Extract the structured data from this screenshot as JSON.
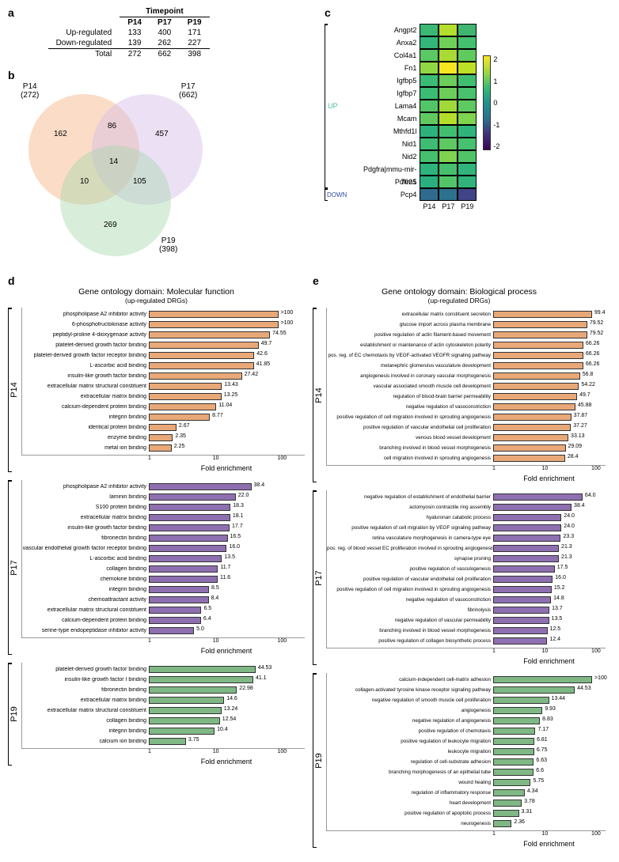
{
  "colors": {
    "p14": "#e8a878",
    "p17": "#b79cc9",
    "p19": "#9bcaa0",
    "venn_p14": "#f4b183",
    "venn_p17": "#d5bde7",
    "venn_p19": "#a8d8ad",
    "up_label": "#4bbfa4",
    "down_label": "#2e4a9e"
  },
  "panel_a": {
    "label": "a",
    "header": "Timepoint",
    "cols": [
      "P14",
      "P17",
      "P19"
    ],
    "rows": [
      {
        "label": "Up-regulated",
        "vals": [
          "133",
          "400",
          "171"
        ]
      },
      {
        "label": "Down-regulated",
        "vals": [
          "139",
          "262",
          "227"
        ]
      },
      {
        "label": "Total",
        "vals": [
          "272",
          "662",
          "398"
        ]
      }
    ]
  },
  "panel_b": {
    "label": "b",
    "sets": [
      {
        "name": "P14",
        "count": "(272)"
      },
      {
        "name": "P17",
        "count": "(662)"
      },
      {
        "name": "P19",
        "count": "(398)"
      }
    ],
    "regions": {
      "only14": "162",
      "only17": "457",
      "only19": "269",
      "a14_17": "86",
      "a14_19": "10",
      "a17_19": "105",
      "all": "14"
    }
  },
  "panel_c": {
    "label": "c",
    "up_label": "UP",
    "down_label": "DOWN",
    "cols": [
      "P14",
      "P17",
      "P19"
    ],
    "cbar_ticks": [
      "2",
      "1",
      "0",
      "-1",
      "-2"
    ],
    "genes": [
      {
        "n": "Angpt2",
        "c": [
          "#3cb875",
          "#b5dd2e",
          "#3fb56f"
        ]
      },
      {
        "n": "Anxa2",
        "c": [
          "#32b679",
          "#70cf57",
          "#45c06e"
        ]
      },
      {
        "n": "Col4a1",
        "c": [
          "#5bc863",
          "#a8db33",
          "#60ca5f"
        ]
      },
      {
        "n": "Fn1",
        "c": [
          "#90d743",
          "#f8e621",
          "#bddf26"
        ]
      },
      {
        "n": "Igfbp5",
        "c": [
          "#3bbc74",
          "#6ccd5a",
          "#3fbe72"
        ]
      },
      {
        "n": "Igfbp7",
        "c": [
          "#3bbc74",
          "#6ccd5a",
          "#4ac16d"
        ]
      },
      {
        "n": "Lama4",
        "c": [
          "#52c569",
          "#a0da39",
          "#5ec961"
        ]
      },
      {
        "n": "Mcam",
        "c": [
          "#60ca60",
          "#b5de2b",
          "#7fd34e"
        ]
      },
      {
        "n": "Mthfd1l",
        "c": [
          "#2db27d",
          "#42be71",
          "#2fb47c"
        ]
      },
      {
        "n": "Nid1",
        "c": [
          "#3fbc73",
          "#5ec961",
          "#47c06f"
        ]
      },
      {
        "n": "Nid2",
        "c": [
          "#46c06f",
          "#7fd34e",
          "#50c467"
        ]
      },
      {
        "n": "Pdgfra|mmu-mir-7025",
        "c": [
          "#2eb37c",
          "#46c06f",
          "#30b47b"
        ]
      },
      {
        "n": "Pdlim1",
        "c": [
          "#2ab07f",
          "#52c569",
          "#30b47b"
        ]
      },
      {
        "n": "Pcp4",
        "c": [
          "#2f6b8e",
          "#2c728e",
          "#414487"
        ]
      }
    ]
  },
  "panel_d": {
    "label": "d",
    "title": "Gene ontology domain: Molecular function",
    "subtitle": "(up-regulated DRGs)",
    "axis": "Fold enrichment",
    "xticks": [
      "1",
      "10",
      "100"
    ],
    "log_min": 1,
    "log_max": 120,
    "blocks": [
      {
        "name": "P14",
        "color": "#e8a878",
        "items": [
          {
            "l": "phospholipase A2 inhibitor activity",
            "v": ">100",
            "n": 100
          },
          {
            "l": "6-phosphofructokinase activity",
            "v": ">100",
            "n": 100
          },
          {
            "l": "peptidyl-proline 4-dioxygenase activity",
            "v": "74.55",
            "n": 74.55
          },
          {
            "l": "platelet-derived growth factor binding",
            "v": "49.7",
            "n": 49.7
          },
          {
            "l": "platelet-derived growth factor receptor binding",
            "v": "42.6",
            "n": 42.6
          },
          {
            "l": "L-ascorbic acid binding",
            "v": "41.85",
            "n": 41.85
          },
          {
            "l": "insulin-like growth factor binding",
            "v": "27.42",
            "n": 27.42
          },
          {
            "l": "extracellular matrix structural constituent",
            "v": "13.43",
            "n": 13.43
          },
          {
            "l": "extracellular matrix binding",
            "v": "13.25",
            "n": 13.25
          },
          {
            "l": "calcium-dependent protein binding",
            "v": "11.04",
            "n": 11.04
          },
          {
            "l": "integrin binding",
            "v": "8.77",
            "n": 8.77
          },
          {
            "l": "identical protein binding",
            "v": "2.67",
            "n": 2.67
          },
          {
            "l": "enzyme binding",
            "v": "2.35",
            "n": 2.35
          },
          {
            "l": "metal ion binding",
            "v": "2.25",
            "n": 2.25
          }
        ]
      },
      {
        "name": "P17",
        "color": "#8e6fb0",
        "items": [
          {
            "l": "phospholipase A2 inhibitor activity",
            "v": "38.4",
            "n": 38.4
          },
          {
            "l": "laminin binding",
            "v": "22.0",
            "n": 22.0
          },
          {
            "l": "S100 protein binding",
            "v": "18.3",
            "n": 18.3
          },
          {
            "l": "extracellular matrix binding",
            "v": "18.1",
            "n": 18.1
          },
          {
            "l": "insulin-like growth factor binding",
            "v": "17.7",
            "n": 17.7
          },
          {
            "l": "fibronectin binding",
            "v": "16.5",
            "n": 16.5
          },
          {
            "l": "vascular endothelial growth factor receptor binding",
            "v": "16.0",
            "n": 16.0
          },
          {
            "l": "L-ascorbic acid binding",
            "v": "13.5",
            "n": 13.5
          },
          {
            "l": "collagen binding",
            "v": "11.7",
            "n": 11.7
          },
          {
            "l": "chemokine binding",
            "v": "11.6",
            "n": 11.6
          },
          {
            "l": "integrin binding",
            "v": "8.5",
            "n": 8.5
          },
          {
            "l": "chemoattractant activity",
            "v": "8.4",
            "n": 8.4
          },
          {
            "l": "extracellular matrix structural constituent",
            "v": "6.5",
            "n": 6.5
          },
          {
            "l": "calcium-dependent protein binding",
            "v": "6.4",
            "n": 6.4
          },
          {
            "l": "serine-type endopeptidase inhibitor activity",
            "v": "5.0",
            "n": 5.0
          }
        ]
      },
      {
        "name": "P19",
        "color": "#7fb884",
        "items": [
          {
            "l": "platelet-derived growth factor binding",
            "v": "44.53",
            "n": 44.53
          },
          {
            "l": "insulin-like growth factor I binding",
            "v": "41.1",
            "n": 41.1
          },
          {
            "l": "fibronectin binding",
            "v": "22.98",
            "n": 22.98
          },
          {
            "l": "extracellular matrix binding",
            "v": "14.6",
            "n": 14.6
          },
          {
            "l": "extracellular matrix structural constituent",
            "v": "13.24",
            "n": 13.24
          },
          {
            "l": "collagen binding",
            "v": "12.54",
            "n": 12.54
          },
          {
            "l": "integrin binding",
            "v": "10.4",
            "n": 10.4
          },
          {
            "l": "calcium ion binding",
            "v": "3.75",
            "n": 3.75
          }
        ]
      }
    ]
  },
  "panel_e": {
    "label": "e",
    "title": "Gene ontology domain: Biological process",
    "subtitle": "(up-regulated DRGs)",
    "axis": "Fold enrichment",
    "xticks": [
      "1",
      "10",
      "100"
    ],
    "log_min": 1,
    "log_max": 120,
    "blocks": [
      {
        "name": "P14",
        "color": "#e8a878",
        "items": [
          {
            "l": "extracellular matrix constituent secretion",
            "v": "99.4",
            "n": 99.4
          },
          {
            "l": "glucose import across plasma membrane",
            "v": "79.52",
            "n": 79.52
          },
          {
            "l": "positive regulation of actin filament-based movement",
            "v": "79.52",
            "n": 79.52
          },
          {
            "l": "establishment or maintenance of actin cytoskeleton polarity",
            "v": "66.26",
            "n": 66.26
          },
          {
            "l": "pos. reg. of EC chemotaxis by VEGF-activated VEGFR signaling pathway",
            "v": "66.26",
            "n": 66.26
          },
          {
            "l": "metanephric glomerulus vasculature development",
            "v": "66.26",
            "n": 66.26
          },
          {
            "l": "angiogenesis involved in coronary vascular morphogenesis",
            "v": "56.8",
            "n": 56.8
          },
          {
            "l": "vascular associated smooth muscle cell development",
            "v": "54.22",
            "n": 54.22
          },
          {
            "l": "regulation of blood-brain barrier permeability",
            "v": "49.7",
            "n": 49.7
          },
          {
            "l": "negative regulation of vasoconstriction",
            "v": "45.88",
            "n": 45.88
          },
          {
            "l": "positive regulation of cell migration involved in sprouting angiogenesis",
            "v": "37.87",
            "n": 37.87
          },
          {
            "l": "positive regulation of vascular endothelial cell proliferation",
            "v": "37.27",
            "n": 37.27
          },
          {
            "l": "venous blood vessel development",
            "v": "33.13",
            "n": 33.13
          },
          {
            "l": "branching involved in blood vessel morphogenesis",
            "v": "29.09",
            "n": 29.09
          },
          {
            "l": "cell migration involved in sprouting angiogenesis",
            "v": "28.4",
            "n": 28.4
          }
        ]
      },
      {
        "name": "P17",
        "color": "#8e6fb0",
        "items": [
          {
            "l": "negative regulation of establishment of endothelial barrier",
            "v": "64.0",
            "n": 64.0
          },
          {
            "l": "actomyosin contractile ring assembly",
            "v": "38.4",
            "n": 38.4
          },
          {
            "l": "hyaluronan catabolic process",
            "v": "24.0",
            "n": 24.0
          },
          {
            "l": "positive regulation of cell migration by VEGF signaling pathway",
            "v": "24.0",
            "n": 24.0
          },
          {
            "l": "retina vasculature morphogenesis in camera-type eye",
            "v": "23.3",
            "n": 23.3
          },
          {
            "l": "pos. reg. of blood vessel EC proliferation involved in sprouting angiogenesis",
            "v": "21.3",
            "n": 21.3
          },
          {
            "l": "synapse pruning",
            "v": "21.3",
            "n": 21.3
          },
          {
            "l": "positive regulation of vasculogenesis",
            "v": "17.5",
            "n": 17.5
          },
          {
            "l": "positive regulation of vascular endothelial cell proliferation",
            "v": "16.0",
            "n": 16.0
          },
          {
            "l": "positive regulation of cell migration involved in sprouting angiogenesis",
            "v": "15.2",
            "n": 15.2
          },
          {
            "l": "negative regulation of vasoconstriction",
            "v": "14.8",
            "n": 14.8
          },
          {
            "l": "fibrinolysis",
            "v": "13.7",
            "n": 13.7
          },
          {
            "l": "negative regulation of vascular permeability",
            "v": "13.5",
            "n": 13.5
          },
          {
            "l": "branching involved in blood vessel morphogenesis",
            "v": "12.5",
            "n": 12.5
          },
          {
            "l": "positive regulation of collagen biosynthetic process",
            "v": "12.4",
            "n": 12.4
          }
        ]
      },
      {
        "name": "P19",
        "color": "#7fb884",
        "items": [
          {
            "l": "calcium-independent cell-matrix adhesion",
            "v": ">100",
            "n": 100
          },
          {
            "l": "collagen-activated tyrosine kinase receptor signaling pathway",
            "v": "44.53",
            "n": 44.53
          },
          {
            "l": "negative regulation of smooth muscle cell proliferation",
            "v": "13.44",
            "n": 13.44
          },
          {
            "l": "angiogenesis",
            "v": "9.93",
            "n": 9.93
          },
          {
            "l": "negative regulation of angiogenesis",
            "v": "8.83",
            "n": 8.83
          },
          {
            "l": "positive regulation of chemotaxis",
            "v": "7.17",
            "n": 7.17
          },
          {
            "l": "positive regulation of leukocyte migration",
            "v": "6.81",
            "n": 6.81
          },
          {
            "l": "leukocyte migration",
            "v": "6.75",
            "n": 6.75
          },
          {
            "l": "regulation of cell-substrate adhesion",
            "v": "6.63",
            "n": 6.63
          },
          {
            "l": "branching morphogenesis of an epithelial tube",
            "v": "6.6",
            "n": 6.6
          },
          {
            "l": "wound healing",
            "v": "5.75",
            "n": 5.75
          },
          {
            "l": "regulation of inflammatory response",
            "v": "4.34",
            "n": 4.34
          },
          {
            "l": "heart development",
            "v": "3.78",
            "n": 3.78
          },
          {
            "l": "positive regulation of apoptotic process",
            "v": "3.31",
            "n": 3.31
          },
          {
            "l": "neurogenesis",
            "v": "2.36",
            "n": 2.36
          }
        ]
      }
    ]
  }
}
